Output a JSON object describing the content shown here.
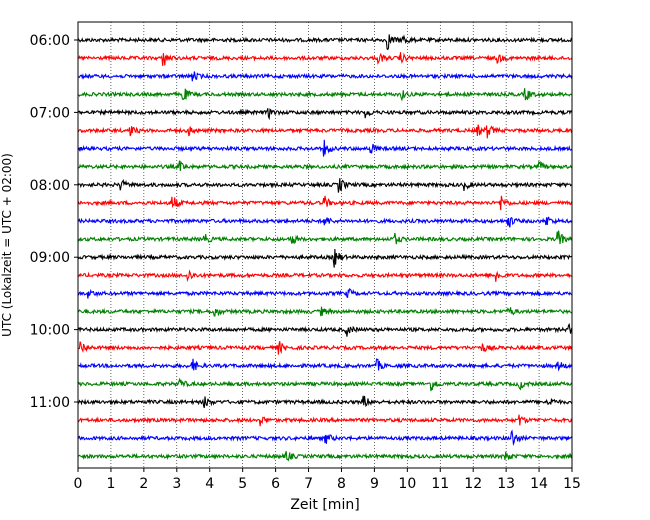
{
  "chart_data": {
    "type": "line",
    "title": "",
    "xlabel": "Zeit  [min]",
    "ylabel": "UTC (Lokalzeit = UTC + 02:00)",
    "xlim": [
      0,
      15
    ],
    "x_ticks": [
      0,
      1,
      2,
      3,
      4,
      5,
      6,
      7,
      8,
      9,
      10,
      11,
      12,
      13,
      14,
      15
    ],
    "x_tick_labels": [
      "0",
      "1",
      "2",
      "3",
      "4",
      "5",
      "6",
      "7",
      "8",
      "9",
      "10",
      "11",
      "12",
      "13",
      "14",
      "15"
    ],
    "y_tick_labels": [
      {
        "row": 0,
        "label": "06:00"
      },
      {
        "row": 4,
        "label": "07:00"
      },
      {
        "row": 8,
        "label": "08:00"
      },
      {
        "row": 12,
        "label": "09:00"
      },
      {
        "row": 16,
        "label": "10:00"
      },
      {
        "row": 20,
        "label": "11:00"
      }
    ],
    "row_colors": [
      "#000000",
      "#ff0000",
      "#0000ff",
      "#008000"
    ],
    "grid": "vertical dotted at each minute",
    "rows": [
      {
        "hour_start": "06:00",
        "events": [
          [
            9.4,
            1.0
          ],
          [
            9.9,
            0.5
          ]
        ]
      },
      {
        "hour_start": "06:15",
        "events": [
          [
            2.6,
            0.9
          ],
          [
            9.15,
            0.5
          ],
          [
            9.8,
            0.5
          ],
          [
            12.75,
            0.5
          ]
        ]
      },
      {
        "hour_start": "06:30",
        "events": [
          [
            3.5,
            0.5
          ]
        ]
      },
      {
        "hour_start": "06:45",
        "events": [
          [
            3.2,
            0.8
          ],
          [
            9.8,
            0.6
          ],
          [
            13.6,
            0.7
          ]
        ]
      },
      {
        "hour_start": "07:00",
        "events": [
          [
            5.8,
            0.5
          ],
          [
            8.75,
            0.5
          ]
        ]
      },
      {
        "hour_start": "07:15",
        "events": [
          [
            1.6,
            0.5
          ],
          [
            3.4,
            0.5
          ],
          [
            12.15,
            0.5
          ],
          [
            12.45,
            0.7
          ]
        ]
      },
      {
        "hour_start": "07:30",
        "events": [
          [
            7.5,
            0.8
          ],
          [
            8.9,
            0.6
          ]
        ]
      },
      {
        "hour_start": "07:45",
        "events": [
          [
            3.1,
            0.5
          ],
          [
            14.0,
            0.5
          ]
        ]
      },
      {
        "hour_start": "08:00",
        "events": [
          [
            1.3,
            0.6
          ],
          [
            7.95,
            0.8
          ],
          [
            11.75,
            0.5
          ]
        ]
      },
      {
        "hour_start": "08:15",
        "events": [
          [
            2.9,
            0.7
          ],
          [
            7.5,
            0.6
          ],
          [
            12.85,
            0.8
          ]
        ]
      },
      {
        "hour_start": "08:30",
        "events": [
          [
            7.5,
            0.6
          ],
          [
            13.1,
            0.6
          ],
          [
            14.25,
            0.5
          ]
        ]
      },
      {
        "hour_start": "08:45",
        "events": [
          [
            3.85,
            0.5
          ],
          [
            6.5,
            0.5
          ],
          [
            9.6,
            0.7
          ],
          [
            14.6,
            0.8
          ]
        ]
      },
      {
        "hour_start": "09:00",
        "events": [
          [
            7.8,
            1.0
          ]
        ]
      },
      {
        "hour_start": "09:15",
        "events": [
          [
            3.35,
            0.6
          ],
          [
            12.7,
            0.7
          ]
        ]
      },
      {
        "hour_start": "09:30",
        "events": [
          [
            0.35,
            0.4
          ],
          [
            8.2,
            0.5
          ]
        ]
      },
      {
        "hour_start": "09:45",
        "events": [
          [
            4.15,
            0.6
          ],
          [
            7.4,
            0.4
          ],
          [
            13.1,
            0.5
          ]
        ]
      },
      {
        "hour_start": "10:00",
        "events": [
          [
            8.15,
            0.7
          ],
          [
            14.9,
            0.5
          ]
        ]
      },
      {
        "hour_start": "10:15",
        "events": [
          [
            0.1,
            0.7
          ],
          [
            6.1,
            0.7
          ],
          [
            12.3,
            0.4
          ]
        ]
      },
      {
        "hour_start": "10:30",
        "events": [
          [
            3.5,
            0.6
          ],
          [
            9.1,
            0.6
          ],
          [
            14.6,
            0.5
          ]
        ]
      },
      {
        "hour_start": "10:45",
        "events": [
          [
            3.1,
            0.5
          ],
          [
            10.75,
            0.7
          ],
          [
            13.4,
            0.6
          ]
        ]
      },
      {
        "hour_start": "11:00",
        "events": [
          [
            3.85,
            0.6
          ],
          [
            8.7,
            0.6
          ],
          [
            14.3,
            0.6
          ]
        ]
      },
      {
        "hour_start": "11:15",
        "events": [
          [
            5.55,
            0.5
          ],
          [
            13.4,
            0.6
          ]
        ]
      },
      {
        "hour_start": "11:30",
        "events": [
          [
            7.55,
            0.5
          ],
          [
            13.2,
            0.9
          ]
        ]
      },
      {
        "hour_start": "11:45",
        "events": [
          [
            6.35,
            0.5
          ],
          [
            13.0,
            0.5
          ]
        ]
      }
    ]
  }
}
